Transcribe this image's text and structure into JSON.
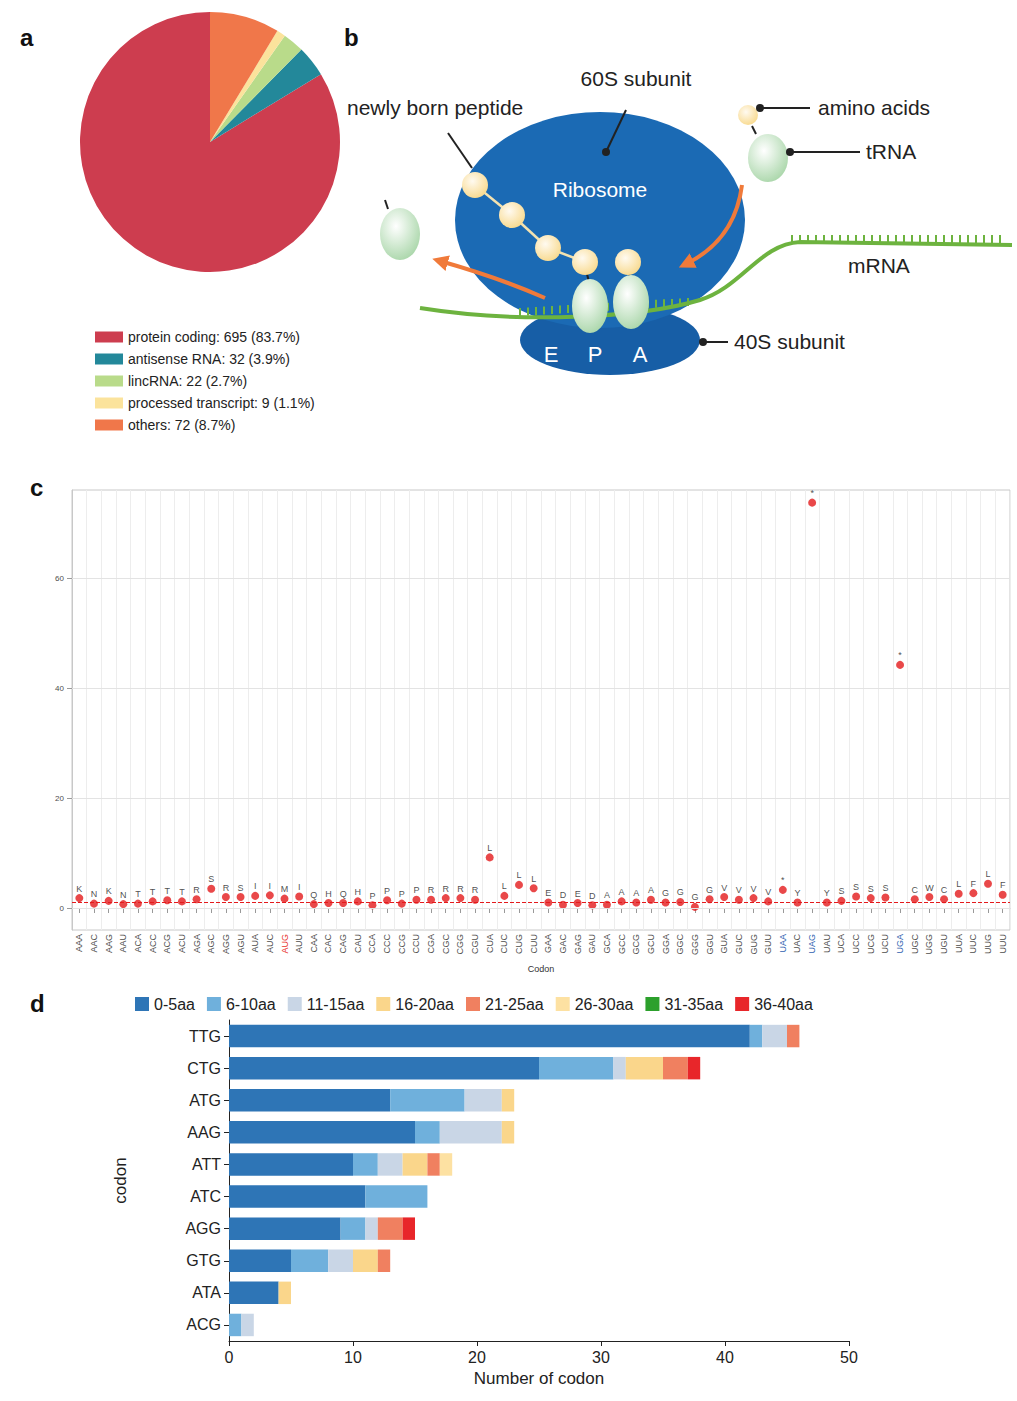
{
  "chart_data": [
    {
      "panel": "a",
      "type": "pie",
      "categories": [
        "protein coding: 695 (83.7%)",
        "antisense RNA: 32 (3.9%)",
        "lincRNA: 22 (2.7%)",
        "processed transcript: 9 (1.1%)",
        "others: 72 (8.7%)"
      ],
      "values": [
        695,
        32,
        22,
        9,
        72
      ],
      "colors": [
        "#cd3d4f",
        "#23889a",
        "#b9db8a",
        "#fbe39c",
        "#f0774a"
      ],
      "legend": "bottom"
    },
    {
      "panel": "c",
      "type": "scatter",
      "x_label": "Codon",
      "categories": [
        "AAA",
        "AAC",
        "AAG",
        "AAU",
        "ACA",
        "ACC",
        "ACG",
        "ACU",
        "AGA",
        "AGC",
        "AGG",
        "AGU",
        "AUA",
        "AUC",
        "AUG",
        "AUU",
        "CAA",
        "CAC",
        "CAG",
        "CAU",
        "CCA",
        "CCC",
        "CCG",
        "CCU",
        "CGA",
        "CGC",
        "CGG",
        "CGU",
        "CUA",
        "CUC",
        "CUG",
        "CUU",
        "GAA",
        "GAC",
        "GAG",
        "GAU",
        "GCA",
        "GCC",
        "GCG",
        "GCU",
        "GGA",
        "GGC",
        "GGG",
        "GGU",
        "GUA",
        "GUC",
        "GUG",
        "GUU",
        "UAA",
        "UAC",
        "UAG",
        "UAU",
        "UCA",
        "UCC",
        "UCG",
        "UCU",
        "UGA",
        "UGC",
        "UGG",
        "UGU",
        "UUA",
        "UUC",
        "UUG",
        "UUU"
      ],
      "values": [
        1.8,
        0.8,
        1.3,
        0.7,
        0.8,
        1.2,
        1.4,
        1.2,
        1.6,
        3.5,
        2.0,
        2.0,
        2.2,
        2.3,
        1.7,
        2.1,
        0.7,
        0.9,
        0.9,
        1.2,
        0.5,
        1.4,
        0.8,
        1.5,
        1.5,
        1.8,
        1.8,
        1.5,
        9.2,
        2.2,
        4.2,
        3.6,
        1.0,
        0.6,
        0.9,
        0.5,
        0.6,
        1.2,
        1.0,
        1.5,
        1.0,
        1.1,
        0.2,
        1.6,
        2.0,
        1.5,
        1.8,
        1.2,
        3.3,
        1.0,
        73.7,
        1.0,
        1.3,
        2.1,
        1.8,
        1.9,
        44.2,
        1.6,
        2.0,
        1.6,
        2.6,
        2.7,
        4.4,
        2.4
      ],
      "point_labels": [
        "K",
        "N",
        "K",
        "N",
        "T",
        "T",
        "T",
        "T",
        "R",
        "S",
        "R",
        "S",
        "I",
        "I",
        "M",
        "I",
        "Q",
        "H",
        "Q",
        "H",
        "P",
        "P",
        "P",
        "P",
        "R",
        "R",
        "R",
        "R",
        "L",
        "L",
        "L",
        "L",
        "E",
        "D",
        "E",
        "D",
        "A",
        "A",
        "A",
        "A",
        "G",
        "G",
        "G",
        "G",
        "V",
        "V",
        "V",
        "V",
        "*",
        "Y",
        "*",
        "Y",
        "S",
        "S",
        "S",
        "S",
        "*",
        "C",
        "W",
        "C",
        "L",
        "F",
        "L",
        "F"
      ],
      "color": "#e41a1c",
      "hline": 1,
      "tick_label_colors": {
        "AUG": "#e8322d",
        "UAA": "#2f5fb0",
        "UAG": "#2f5fb0",
        "UGA": "#2f5fb0"
      },
      "ylim": [
        -4,
        76
      ],
      "yticks": [
        0,
        20,
        40,
        60
      ],
      "grid": true
    },
    {
      "panel": "d",
      "type": "bar",
      "orientation": "horizontal",
      "stacked": true,
      "legend": "top",
      "x_label": "Number of codon",
      "y_label": "codon",
      "categories": [
        "TTG",
        "CTG",
        "ATG",
        "AAG",
        "ATT",
        "ATC",
        "AGG",
        "GTG",
        "ATA",
        "ACG"
      ],
      "series": [
        {
          "name": "0-5aa",
          "color": "#2e75b6",
          "values": [
            42,
            25,
            13,
            15,
            10,
            11,
            9,
            5,
            4,
            0
          ]
        },
        {
          "name": "6-10aa",
          "color": "#6fb0dc",
          "values": [
            1,
            6,
            6,
            2,
            2,
            5,
            2,
            3,
            0,
            1
          ]
        },
        {
          "name": "11-15aa",
          "color": "#c9d6e6",
          "values": [
            2,
            1,
            3,
            5,
            2,
            0,
            1,
            2,
            0,
            1
          ]
        },
        {
          "name": "16-20aa",
          "color": "#fad68b",
          "values": [
            0,
            3,
            1,
            1,
            2,
            0,
            0,
            2,
            1,
            0
          ]
        },
        {
          "name": "21-25aa",
          "color": "#f08060",
          "values": [
            1,
            2,
            0,
            0,
            1,
            0,
            2,
            1,
            0,
            0
          ]
        },
        {
          "name": "26-30aa",
          "color": "#fde1a2",
          "values": [
            0,
            0,
            0,
            0,
            1,
            0,
            0,
            0,
            0,
            0
          ]
        },
        {
          "name": "31-35aa",
          "color": "#2ca02c",
          "values": [
            0,
            0,
            0,
            0,
            0,
            0,
            0,
            0,
            0,
            0
          ]
        },
        {
          "name": "36-40aa",
          "color": "#e8262a",
          "values": [
            0,
            1,
            0,
            0,
            0,
            0,
            1,
            0,
            0,
            0
          ]
        }
      ],
      "xlim": [
        0,
        50
      ],
      "xticks": [
        0,
        10,
        20,
        30,
        40,
        50
      ]
    }
  ],
  "diagram": {
    "panel": "b",
    "labels": {
      "subunit_60s": "60S subunit",
      "peptide": "newly born peptide",
      "amino_acids": "amino acids",
      "trna": "tRNA",
      "ribosome": "Ribosome",
      "mrna": "mRNA",
      "subunit_40s": "40S subunit",
      "sites": [
        "E",
        "P",
        "A"
      ]
    }
  }
}
